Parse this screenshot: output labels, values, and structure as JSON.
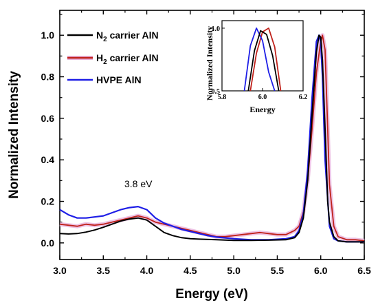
{
  "chart_data": [
    {
      "type": "line",
      "xlabel": "Energy (eV)",
      "ylabel": "Normalized Intensity",
      "xlim": [
        3.0,
        6.5
      ],
      "ylim": [
        -0.08,
        1.12
      ],
      "xticks": [
        "3.0",
        "3.5",
        "4.0",
        "4.5",
        "5.0",
        "5.5",
        "6.0",
        "6.5"
      ],
      "yticks": [
        "0.0",
        "0.2",
        "0.4",
        "0.6",
        "0.8",
        "1.0"
      ],
      "legend": "top-left",
      "annotation": "3.8 eV",
      "colors": {
        "n2": "#000000",
        "h2": "#c0221b",
        "h2_glow": "#e8b3dd",
        "hvpe": "#1e1ee6"
      },
      "series": [
        {
          "name": "N2 carrier AlN",
          "name_main": "N",
          "name_sub": "2",
          "name_rest": " carrier AlN",
          "x": [
            3.0,
            3.1,
            3.2,
            3.3,
            3.4,
            3.5,
            3.6,
            3.7,
            3.8,
            3.9,
            4.0,
            4.1,
            4.2,
            4.3,
            4.4,
            4.5,
            4.6,
            4.8,
            5.0,
            5.2,
            5.4,
            5.6,
            5.7,
            5.75,
            5.8,
            5.85,
            5.9,
            5.95,
            5.98,
            6.0,
            6.02,
            6.05,
            6.08,
            6.1,
            6.15,
            6.2,
            6.3,
            6.4,
            6.5
          ],
          "y": [
            0.045,
            0.043,
            0.045,
            0.052,
            0.062,
            0.075,
            0.09,
            0.105,
            0.115,
            0.12,
            0.11,
            0.08,
            0.05,
            0.035,
            0.025,
            0.02,
            0.018,
            0.015,
            0.012,
            0.012,
            0.013,
            0.015,
            0.025,
            0.05,
            0.12,
            0.3,
            0.62,
            0.92,
            1.0,
            0.99,
            0.88,
            0.55,
            0.2,
            0.1,
            0.03,
            0.01,
            0.005,
            0.005,
            0.005
          ]
        },
        {
          "name": "H2 carrier AlN",
          "name_main": "H",
          "name_sub": "2",
          "name_rest": " carrier AlN",
          "x": [
            3.0,
            3.1,
            3.2,
            3.3,
            3.4,
            3.5,
            3.6,
            3.7,
            3.8,
            3.9,
            4.0,
            4.1,
            4.2,
            4.3,
            4.4,
            4.5,
            4.6,
            4.7,
            4.8,
            4.9,
            5.0,
            5.1,
            5.2,
            5.3,
            5.4,
            5.5,
            5.6,
            5.7,
            5.75,
            5.8,
            5.85,
            5.9,
            5.95,
            6.0,
            6.02,
            6.05,
            6.08,
            6.1,
            6.15,
            6.2,
            6.3,
            6.4,
            6.5
          ],
          "y": [
            0.09,
            0.085,
            0.08,
            0.09,
            0.085,
            0.09,
            0.1,
            0.11,
            0.12,
            0.13,
            0.12,
            0.1,
            0.09,
            0.08,
            0.07,
            0.06,
            0.05,
            0.04,
            0.03,
            0.03,
            0.035,
            0.04,
            0.045,
            0.05,
            0.045,
            0.04,
            0.04,
            0.06,
            0.08,
            0.15,
            0.3,
            0.55,
            0.82,
            0.97,
            1.0,
            0.93,
            0.55,
            0.28,
            0.08,
            0.03,
            0.015,
            0.015,
            0.01
          ]
        },
        {
          "name": "HVPE AlN",
          "name_main": "HVPE AlN",
          "name_sub": "",
          "name_rest": "",
          "x": [
            3.0,
            3.1,
            3.2,
            3.3,
            3.4,
            3.5,
            3.6,
            3.7,
            3.8,
            3.9,
            4.0,
            4.1,
            4.2,
            4.3,
            4.4,
            4.5,
            4.6,
            4.7,
            4.8,
            5.0,
            5.2,
            5.4,
            5.6,
            5.7,
            5.75,
            5.8,
            5.85,
            5.9,
            5.95,
            5.98,
            6.0,
            6.02,
            6.05,
            6.1,
            6.15,
            6.2,
            6.3,
            6.4,
            6.5
          ],
          "y": [
            0.16,
            0.135,
            0.12,
            0.12,
            0.125,
            0.13,
            0.145,
            0.16,
            0.17,
            0.175,
            0.16,
            0.12,
            0.095,
            0.08,
            0.065,
            0.055,
            0.045,
            0.035,
            0.028,
            0.02,
            0.015,
            0.015,
            0.02,
            0.03,
            0.06,
            0.14,
            0.35,
            0.7,
            0.97,
            1.0,
            0.97,
            0.8,
            0.4,
            0.08,
            0.02,
            0.01,
            0.005,
            0.005,
            0.005
          ]
        }
      ]
    },
    {
      "type": "line",
      "role": "inset",
      "xlabel": "Energy",
      "ylabel": "Normalized Intensity",
      "xlim": [
        5.8,
        6.2
      ],
      "ylim": [
        0.5,
        1.06
      ],
      "xticks": [
        "5.8",
        "6.0",
        "6.2"
      ],
      "yticks": [
        "0.5",
        "1.0"
      ],
      "series": [
        {
          "name": "N2 carrier AlN",
          "color": "#000000",
          "x": [
            5.93,
            5.96,
            5.99,
            6.02,
            6.05,
            6.08
          ],
          "y": [
            0.5,
            0.82,
            0.98,
            0.95,
            0.78,
            0.5
          ]
        },
        {
          "name": "H2 carrier AlN",
          "color": "#c0221b",
          "x": [
            5.94,
            5.97,
            6.0,
            6.03,
            6.06,
            6.09
          ],
          "y": [
            0.5,
            0.8,
            0.97,
            1.0,
            0.85,
            0.5
          ]
        },
        {
          "name": "HVPE AlN",
          "color": "#1e1ee6",
          "x": [
            5.91,
            5.94,
            5.97,
            6.0,
            6.03,
            6.06
          ],
          "y": [
            0.5,
            0.86,
            1.0,
            0.9,
            0.65,
            0.5
          ]
        }
      ]
    }
  ]
}
